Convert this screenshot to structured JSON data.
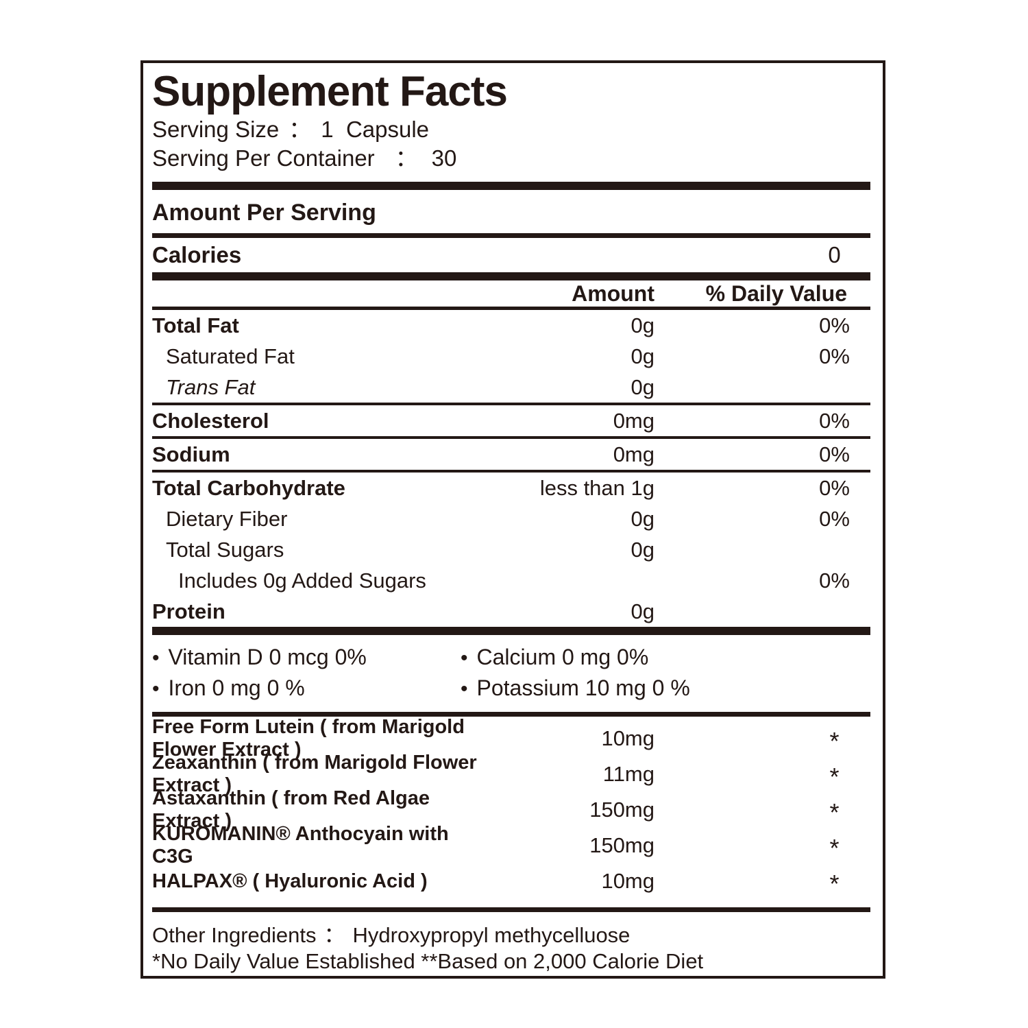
{
  "ink_color": "#231815",
  "header": {
    "title": "Supplement Facts",
    "serving_size": {
      "label": "Serving Size",
      "sep": "：",
      "value": "1  Capsule"
    },
    "servings_per_container": {
      "label": "Serving Per Container",
      "sep": "：",
      "value": "30"
    }
  },
  "amount_per_serving": "Amount Per Serving",
  "calories": {
    "label": "Calories",
    "value": "0"
  },
  "columns": {
    "amount": "Amount",
    "daily_value": "% Daily Value"
  },
  "nutrients": [
    {
      "name": "Total Fat",
      "amount": "0g",
      "dv": "0%",
      "bold": true,
      "indent": 0,
      "rule_above": false
    },
    {
      "name": "Saturated Fat",
      "amount": "0g",
      "dv": "0%",
      "bold": false,
      "indent": 1,
      "rule_above": false
    },
    {
      "name": "Trans Fat",
      "amount": "0g",
      "dv": "",
      "bold": false,
      "italic": true,
      "indent": 1,
      "rule_above": false
    },
    {
      "name": "Cholesterol",
      "amount": "0mg",
      "dv": "0%",
      "bold": true,
      "indent": 0,
      "rule_above": true
    },
    {
      "name": "Sodium",
      "amount": "0mg",
      "dv": "0%",
      "bold": true,
      "indent": 0,
      "rule_above": true
    },
    {
      "name": "Total Carbohydrate",
      "amount": "less than 1g",
      "dv": "0%",
      "bold": true,
      "indent": 0,
      "rule_above": true
    },
    {
      "name": "Dietary Fiber",
      "amount": "0g",
      "dv": "0%",
      "bold": false,
      "indent": 1,
      "rule_above": false
    },
    {
      "name": "Total Sugars",
      "amount": "0g",
      "dv": "",
      "bold": false,
      "indent": 1,
      "rule_above": false
    },
    {
      "name": "Includes 0g Added Sugars",
      "amount": "",
      "dv": "0%",
      "bold": false,
      "indent": 2,
      "rule_above": false
    },
    {
      "name": "Protein",
      "amount": "0g",
      "dv": "",
      "bold": true,
      "indent": 0,
      "rule_above": false
    }
  ],
  "micronutrients": [
    {
      "left": "Vitamin D 0 mcg 0%",
      "right": "Calcium 0 mg 0%"
    },
    {
      "left": "Iron 0 mg 0 %",
      "right": "Potassium 10 mg 0 %"
    }
  ],
  "actives": [
    {
      "name": "Free Form Lutein ( from Marigold Flower Extract )",
      "amount": "10mg",
      "dv": "*"
    },
    {
      "name": "Zeaxanthin ( from Marigold Flower Extract )",
      "amount": "11mg",
      "dv": "*"
    },
    {
      "name": "Astaxanthin ( from Red Algae Extract )",
      "amount": "150mg",
      "dv": "*"
    },
    {
      "name": "KUROMANIN® Anthocyain with C3G",
      "amount": "150mg",
      "dv": "*"
    },
    {
      "name": "HALPAX® ( Hyaluronic Acid )",
      "amount": "10mg",
      "dv": "*"
    }
  ],
  "footer": {
    "other_ingredients": {
      "label": "Other Ingredients",
      "sep": "：",
      "value": "Hydroxypropyl methycelluose"
    },
    "footnote": "*No Daily Value Established **Based on 2,000 Calorie Diet"
  }
}
